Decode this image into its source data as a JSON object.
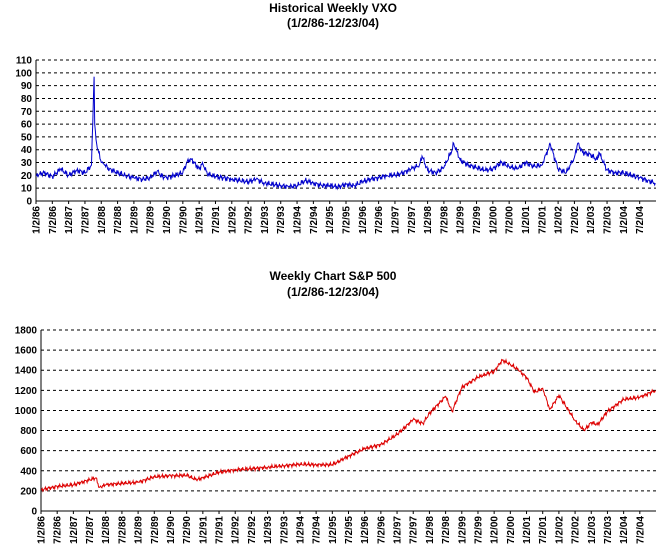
{
  "charts": [
    {
      "title": "Historical Weekly VXO",
      "subtitle": "(1/2/86-12/23/04)"
    },
    {
      "title": "Weekly Chart S&P 500",
      "subtitle": "(1/2/86-12/23/04)"
    }
  ],
  "colors": {
    "vxo_line": "#0000cc",
    "sp500_line": "#dd0000",
    "grid": "#000000"
  },
  "chart_data": [
    {
      "type": "line",
      "title": "Historical Weekly VXO",
      "subtitle": "(1/2/86-12/23/04)",
      "xlabel": "",
      "ylabel": "",
      "ylim": [
        0,
        110
      ],
      "yticks": [
        0,
        10,
        20,
        30,
        40,
        50,
        60,
        70,
        80,
        90,
        100,
        110
      ],
      "x_tick_labels": [
        "1/2/86",
        "7/2/86",
        "1/2/87",
        "7/2/87",
        "1/2/88",
        "7/2/88",
        "1/2/89",
        "7/2/89",
        "1/2/90",
        "7/2/90",
        "1/2/91",
        "7/2/91",
        "1/2/92",
        "7/2/92",
        "1/2/93",
        "7/2/93",
        "1/2/94",
        "7/2/94",
        "1/2/95",
        "7/2/95",
        "1/2/96",
        "7/2/96",
        "1/2/97",
        "7/2/97",
        "1/2/98",
        "7/2/98",
        "1/2/99",
        "7/2/99",
        "1/2/00",
        "7/2/00",
        "1/2/01",
        "7/2/01",
        "1/2/02",
        "7/2/02",
        "1/2/03",
        "7/2/03",
        "1/2/04",
        "7/2/04"
      ],
      "grid": "horizontal dashed",
      "legend": "none",
      "series": [
        {
          "x": [
            1986.0,
            1986.25,
            1986.5,
            1986.75,
            1987.0,
            1987.25,
            1987.5,
            1987.7,
            1987.78,
            1987.8,
            1987.84,
            1987.9,
            1988.0,
            1988.1,
            1988.25,
            1988.5,
            1988.75,
            1989.0,
            1989.25,
            1989.5,
            1989.75,
            1989.8,
            1990.0,
            1990.25,
            1990.5,
            1990.62,
            1990.75,
            1991.0,
            1991.1,
            1991.25,
            1991.5,
            1991.75,
            1992.0,
            1992.25,
            1992.5,
            1992.75,
            1993.0,
            1993.25,
            1993.5,
            1993.75,
            1994.0,
            1994.25,
            1994.5,
            1994.75,
            1995.0,
            1995.25,
            1995.5,
            1995.75,
            1996.0,
            1996.25,
            1996.5,
            1996.75,
            1997.0,
            1997.25,
            1997.5,
            1997.75,
            1997.83,
            1998.0,
            1998.25,
            1998.5,
            1998.75,
            1998.8,
            1999.0,
            1999.25,
            1999.5,
            1999.75,
            2000.0,
            2000.25,
            2000.5,
            2000.75,
            2001.0,
            2001.25,
            2001.5,
            2001.72,
            2001.75,
            2002.0,
            2002.25,
            2002.5,
            2002.6,
            2002.75,
            2003.0,
            2003.2,
            2003.25,
            2003.5,
            2003.75,
            2004.0,
            2004.25,
            2004.5,
            2004.75,
            2004.98
          ],
          "values": [
            20,
            22,
            19,
            25,
            20,
            24,
            22,
            28,
            97,
            60,
            48,
            40,
            30,
            28,
            25,
            22,
            20,
            18,
            17,
            18,
            24,
            20,
            18,
            20,
            22,
            30,
            33,
            25,
            30,
            21,
            19,
            18,
            17,
            16,
            15,
            17,
            14,
            13,
            12,
            11,
            12,
            16,
            14,
            12,
            12,
            11,
            13,
            12,
            15,
            17,
            18,
            20,
            20,
            22,
            25,
            28,
            35,
            24,
            22,
            26,
            40,
            45,
            32,
            28,
            26,
            24,
            25,
            30,
            27,
            25,
            30,
            27,
            28,
            42,
            45,
            25,
            22,
            34,
            45,
            38,
            36,
            32,
            38,
            24,
            22,
            22,
            20,
            18,
            16,
            14
          ]
        }
      ]
    },
    {
      "type": "line",
      "title": "Weekly Chart S&P 500",
      "subtitle": "(1/2/86-12/23/04)",
      "xlabel": "",
      "ylabel": "",
      "ylim": [
        0,
        1800
      ],
      "yticks": [
        0,
        200,
        400,
        600,
        800,
        1000,
        1200,
        1400,
        1600,
        1800
      ],
      "x_tick_labels": [
        "1/2/86",
        "7/2/86",
        "1/2/87",
        "7/2/87",
        "1/2/88",
        "7/2/88",
        "1/2/89",
        "7/2/89",
        "1/2/90",
        "7/2/90",
        "1/2/91",
        "7/2/91",
        "1/2/92",
        "7/2/92",
        "1/2/93",
        "7/2/93",
        "1/2/94",
        "7/2/94",
        "1/2/95",
        "7/2/95",
        "1/2/96",
        "7/2/96",
        "1/2/97",
        "7/2/97",
        "1/2/98",
        "7/2/98",
        "1/2/99",
        "7/2/99",
        "1/2/00",
        "7/2/00",
        "1/2/01",
        "7/2/01",
        "1/2/02",
        "7/2/02",
        "1/2/03",
        "7/2/03",
        "1/2/04",
        "7/2/04"
      ],
      "grid": "horizontal dashed",
      "legend": "none",
      "series": [
        {
          "x": [
            1986.0,
            1986.5,
            1987.0,
            1987.5,
            1987.7,
            1987.8,
            1988.0,
            1988.5,
            1989.0,
            1989.5,
            1990.0,
            1990.5,
            1990.8,
            1991.0,
            1991.5,
            1992.0,
            1992.5,
            1993.0,
            1993.5,
            1994.0,
            1994.5,
            1995.0,
            1995.5,
            1996.0,
            1996.5,
            1997.0,
            1997.5,
            1997.8,
            1998.0,
            1998.5,
            1998.7,
            1999.0,
            1999.5,
            2000.0,
            2000.25,
            2000.5,
            2000.75,
            2001.0,
            2001.25,
            2001.5,
            2001.72,
            2002.0,
            2002.5,
            2002.78,
            2003.0,
            2003.2,
            2003.5,
            2004.0,
            2004.5,
            2004.98
          ],
          "values": [
            210,
            245,
            260,
            310,
            330,
            235,
            260,
            275,
            285,
            340,
            350,
            355,
            310,
            330,
            385,
            410,
            420,
            435,
            450,
            465,
            460,
            460,
            545,
            620,
            660,
            760,
            910,
            870,
            970,
            1140,
            990,
            1230,
            1330,
            1390,
            1500,
            1460,
            1400,
            1330,
            1180,
            1220,
            1010,
            1150,
            900,
            800,
            880,
            860,
            990,
            1110,
            1130,
            1200
          ]
        }
      ]
    }
  ]
}
